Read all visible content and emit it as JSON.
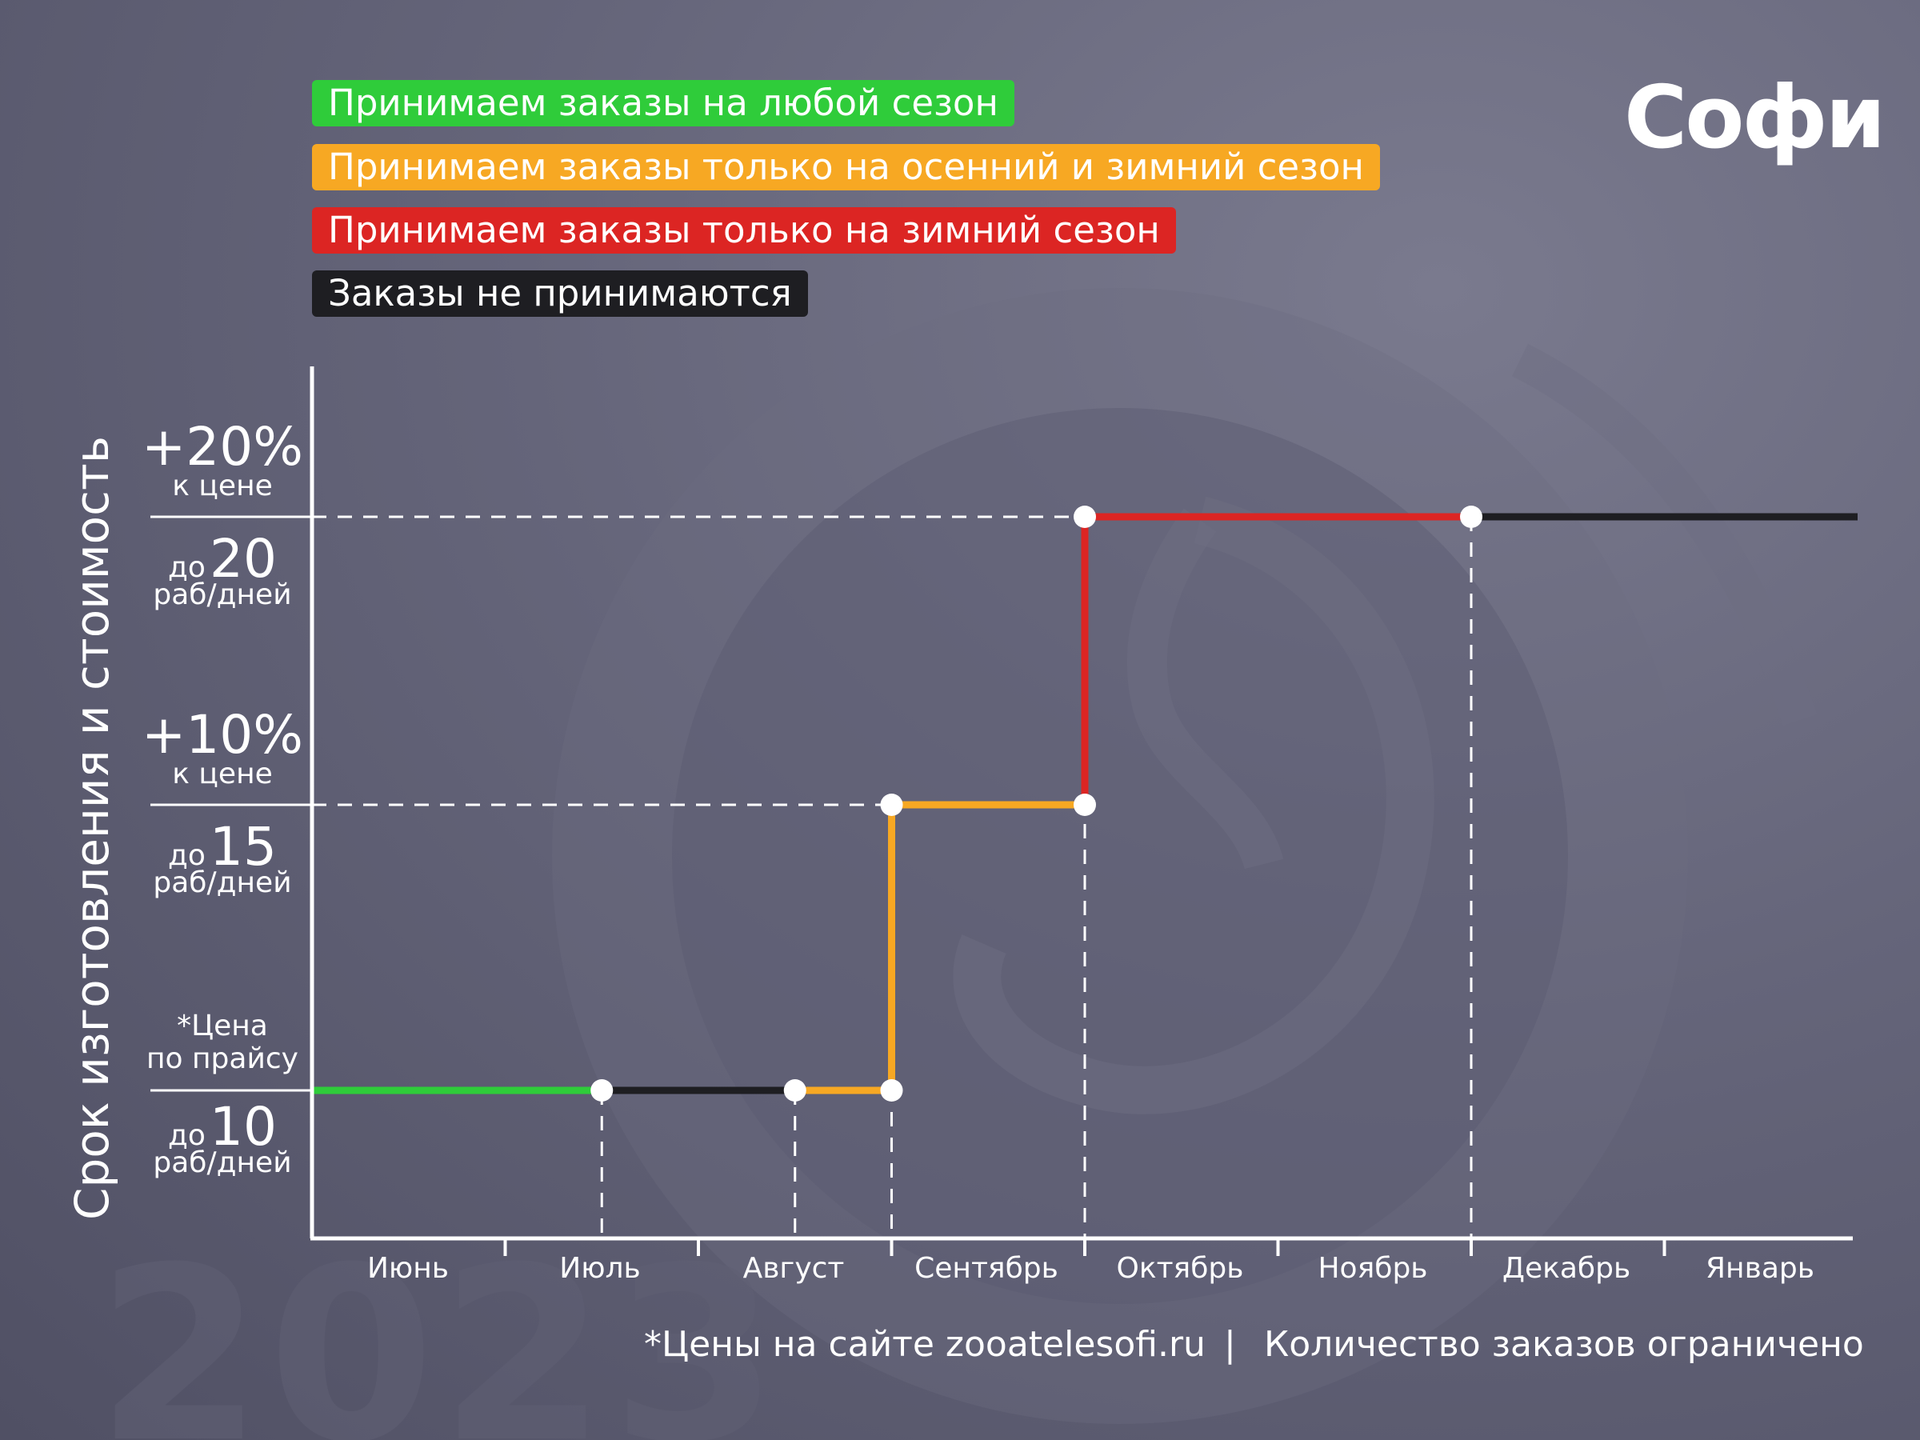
{
  "legend": [
    {
      "label": "Принимаем заказы на любой сезон",
      "color": "#2fcc3a"
    },
    {
      "label": "Принимаем заказы только на осенний и зимний сезон",
      "color": "#f7a823"
    },
    {
      "label": "Принимаем заказы только на зимний сезон",
      "color": "#dc2523"
    },
    {
      "label": "Заказы не принимаются",
      "color": "#1e1e22"
    }
  ],
  "logo": {
    "text": "Софи"
  },
  "watermark_year": "2023",
  "footer": {
    "left": "*Цены на сайте zooatelesofi.ru",
    "separator": "|",
    "right": "Количество заказов ограничено"
  },
  "chart_data": {
    "type": "line",
    "ylabel": "Срок изготовления и стоимость",
    "categories": [
      "Июнь",
      "Июль",
      "Август",
      "Сентябрь",
      "Октябрь",
      "Ноябрь",
      "Декабрь",
      "Январь"
    ],
    "levels": [
      {
        "days": 10,
        "prefix": "до",
        "value": "10",
        "unit": "раб/дней",
        "price_value": "*Цена",
        "price_note": "по прайсу"
      },
      {
        "days": 15,
        "prefix": "до",
        "value": "15",
        "unit": "раб/дней",
        "price_value": "+10%",
        "price_note": "к цене"
      },
      {
        "days": 20,
        "prefix": "до",
        "value": "20",
        "unit": "раб/дней",
        "price_value": "+20%",
        "price_note": "к цене"
      }
    ],
    "segments": [
      {
        "x": [
          0,
          1.5
        ],
        "y": [
          10,
          10
        ],
        "color": "#2fcc3a"
      },
      {
        "x": [
          1.5,
          2.5
        ],
        "y": [
          10,
          10
        ],
        "color": "#1e1e22"
      },
      {
        "x": [
          2.5,
          3.0
        ],
        "y": [
          10,
          10
        ],
        "color": "#f7a823"
      },
      {
        "x": [
          3.0,
          3.0
        ],
        "y": [
          10,
          15
        ],
        "color": "#f7a823"
      },
      {
        "x": [
          3.0,
          4.0
        ],
        "y": [
          15,
          15
        ],
        "color": "#f7a823"
      },
      {
        "x": [
          4.0,
          4.0
        ],
        "y": [
          15,
          20
        ],
        "color": "#dc2523"
      },
      {
        "x": [
          4.0,
          6.0
        ],
        "y": [
          20,
          20
        ],
        "color": "#dc2523"
      },
      {
        "x": [
          6.0,
          8.0
        ],
        "y": [
          20,
          20
        ],
        "color": "#1e1e22"
      }
    ],
    "points": [
      {
        "x": 1.5,
        "y": 10
      },
      {
        "x": 2.5,
        "y": 10
      },
      {
        "x": 3.0,
        "y": 10
      },
      {
        "x": 3.0,
        "y": 15
      },
      {
        "x": 4.0,
        "y": 15
      },
      {
        "x": 4.0,
        "y": 20
      },
      {
        "x": 6.0,
        "y": 20
      }
    ]
  }
}
